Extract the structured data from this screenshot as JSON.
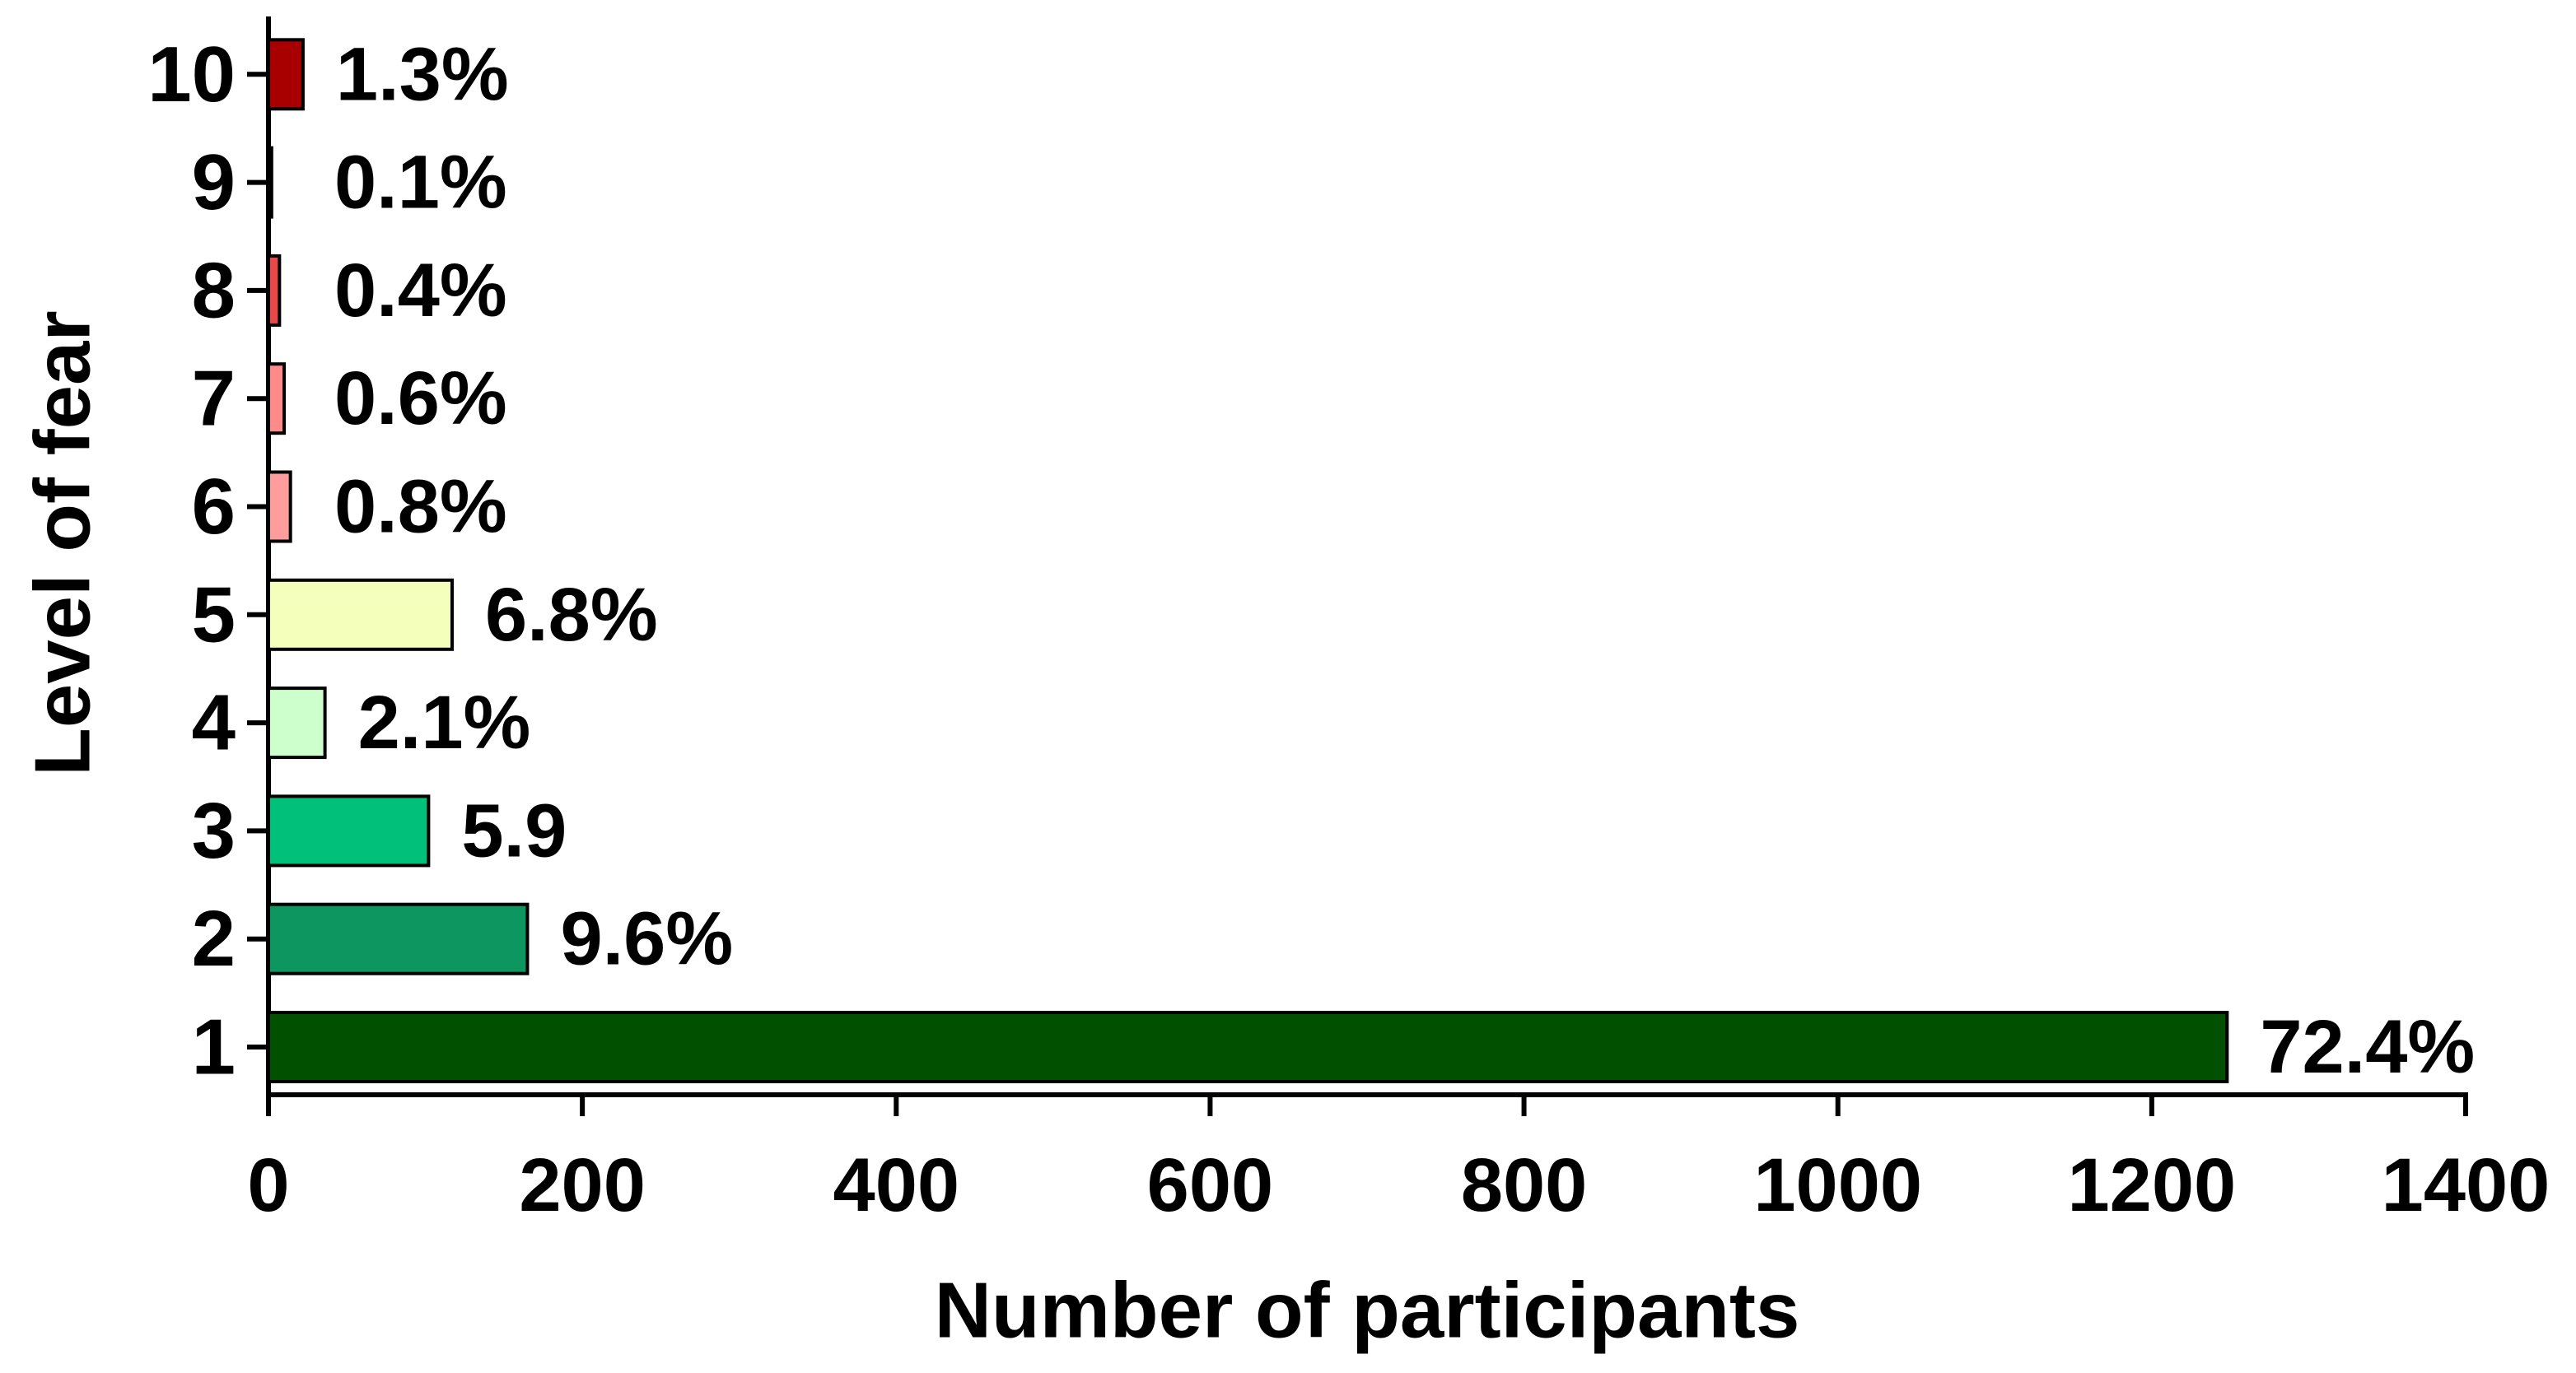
{
  "chart_data": {
    "type": "hbar",
    "xlabel": "Number of participants",
    "ylabel": "Level of fear",
    "categories": [
      "1",
      "2",
      "3",
      "4",
      "5",
      "6",
      "7",
      "8",
      "9",
      "10"
    ],
    "values": [
      1248,
      165,
      102,
      36,
      117,
      14,
      10,
      7,
      2,
      22
    ],
    "annotations": [
      "72.4%",
      "9.6%",
      "5.9",
      "2.1%",
      "6.8%",
      "0.8%",
      "0.6%",
      "0.4%",
      "0.1%",
      "1.3%"
    ],
    "colors": [
      "#005000",
      "#0e9660",
      "#00c07a",
      "#ccffcc",
      "#f4ffbb",
      "#ff9c9c",
      "#ff8a8a",
      "#e84848",
      "#d42020",
      "#a80000"
    ],
    "xlim": [
      0,
      1400
    ],
    "xticks": [
      0,
      200,
      400,
      600,
      800,
      1000,
      1200,
      1400
    ]
  }
}
